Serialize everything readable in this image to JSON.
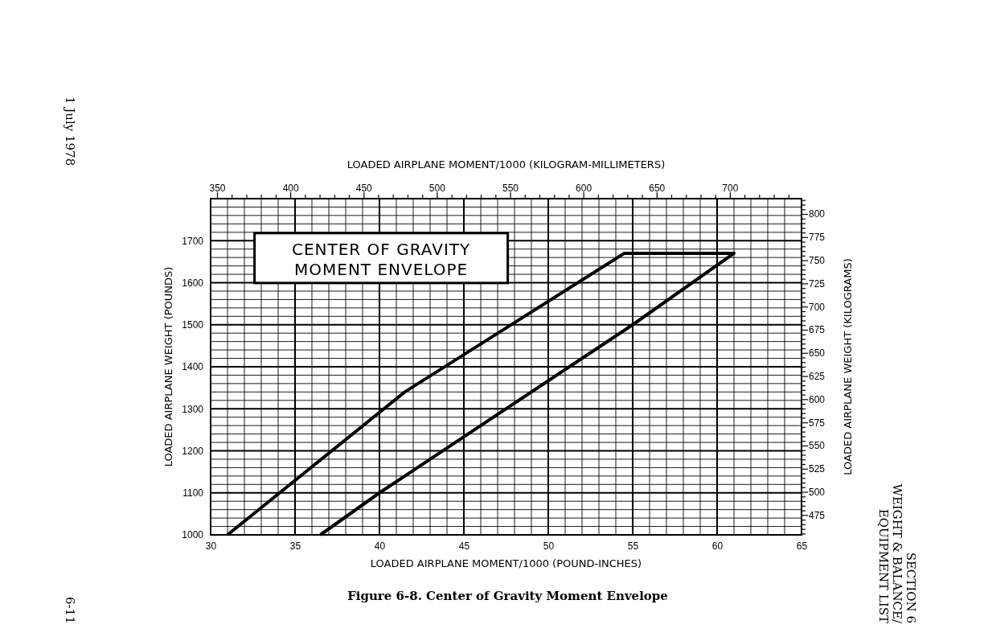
{
  "chart_data": {
    "type": "line",
    "title": "CENTER OF GRAVITY\nMOMENT ENVELOPE",
    "xlabel": "LOADED AIRPLANE MOMENT/1000 (POUND-INCHES)",
    "ylabel": "LOADED AIRPLANE WEIGHT (POUNDS)",
    "x2label": "LOADED AIRPLANE MOMENT/1000 (KILOGRAM-MILLIMETERS)",
    "y2label": "LOADED AIRPLANE WEIGHT (KILOGRAMS)",
    "xlim": [
      30,
      65
    ],
    "xticks": [
      30,
      {
        "value": 31,
        "label": null
      },
      {
        "value": 32,
        "label": null
      },
      {
        "value": 33,
        "label": null
      },
      {
        "value": 34,
        "label": null
      },
      35,
      {
        "value": 36,
        "label": null
      },
      {
        "value": 37,
        "label": null
      },
      {
        "value": 38,
        "label": null
      },
      {
        "value": 39,
        "label": null
      },
      40,
      {
        "value": 41,
        "label": null
      },
      {
        "value": 42,
        "label": null
      },
      {
        "value": 43,
        "label": null
      },
      {
        "value": 44,
        "label": null
      },
      45,
      {
        "value": 46,
        "label": null
      },
      {
        "value": 47,
        "label": null
      },
      {
        "value": 48,
        "label": null
      },
      {
        "value": 49,
        "label": null
      },
      50,
      {
        "value": 51,
        "label": null
      },
      {
        "value": 52,
        "label": null
      },
      {
        "value": 53,
        "label": null
      },
      {
        "value": 54,
        "label": null
      },
      55,
      {
        "value": 56,
        "label": null
      },
      {
        "value": 57,
        "label": null
      },
      {
        "value": 58,
        "label": null
      },
      {
        "value": 59,
        "label": null
      },
      60,
      {
        "value": 61,
        "label": null
      },
      {
        "value": 62,
        "label": null
      },
      {
        "value": 63,
        "label": null
      },
      {
        "value": 64,
        "label": null
      },
      65
    ],
    "ylim": [
      1000,
      1800
    ],
    "yticks": [
      1000,
      {
        "value": 1020,
        "label": null
      },
      {
        "value": 1040,
        "label": null
      },
      {
        "value": 1060,
        "label": null
      },
      {
        "value": 1080,
        "label": null
      },
      1100,
      {
        "value": 1120,
        "label": null
      },
      {
        "value": 1140,
        "label": null
      },
      {
        "value": 1160,
        "label": null
      },
      {
        "value": 1180,
        "label": null
      },
      1200,
      {
        "value": 1220,
        "label": null
      },
      {
        "value": 1240,
        "label": null
      },
      {
        "value": 1260,
        "label": null
      },
      {
        "value": 1280,
        "label": null
      },
      1300,
      {
        "value": 1320,
        "label": null
      },
      {
        "value": 1340,
        "label": null
      },
      {
        "value": 1360,
        "label": null
      },
      {
        "value": 1380,
        "label": null
      },
      1400,
      {
        "value": 1420,
        "label": null
      },
      {
        "value": 1440,
        "label": null
      },
      {
        "value": 1460,
        "label": null
      },
      {
        "value": 1480,
        "label": null
      },
      1500,
      {
        "value": 1520,
        "label": null
      },
      {
        "value": 1540,
        "label": null
      },
      {
        "value": 1560,
        "label": null
      },
      {
        "value": 1580,
        "label": null
      },
      1600,
      {
        "value": 1620,
        "label": null
      },
      {
        "value": 1640,
        "label": null
      },
      {
        "value": 1660,
        "label": null
      },
      {
        "value": 1680,
        "label": null
      },
      1700,
      {
        "value": 1720,
        "label": null
      },
      {
        "value": 1740,
        "label": null
      },
      {
        "value": 1760,
        "label": null
      },
      {
        "value": 1780,
        "label": null
      },
      {
        "value": 1800,
        "label": null
      }
    ],
    "x2lim": [
      345.6,
      748.9
    ],
    "x2ticks": [
      350,
      {
        "value": 360,
        "label": null
      },
      {
        "value": 370,
        "label": null
      },
      {
        "value": 380,
        "label": null
      },
      {
        "value": 390,
        "label": null
      },
      400,
      {
        "value": 410,
        "label": null
      },
      {
        "value": 420,
        "label": null
      },
      {
        "value": 430,
        "label": null
      },
      {
        "value": 440,
        "label": null
      },
      450,
      {
        "value": 460,
        "label": null
      },
      {
        "value": 470,
        "label": null
      },
      {
        "value": 480,
        "label": null
      },
      {
        "value": 490,
        "label": null
      },
      500,
      {
        "value": 510,
        "label": null
      },
      {
        "value": 520,
        "label": null
      },
      {
        "value": 530,
        "label": null
      },
      {
        "value": 540,
        "label": null
      },
      550,
      {
        "value": 560,
        "label": null
      },
      {
        "value": 570,
        "label": null
      },
      {
        "value": 580,
        "label": null
      },
      {
        "value": 590,
        "label": null
      },
      600,
      {
        "value": 610,
        "label": null
      },
      {
        "value": 620,
        "label": null
      },
      {
        "value": 630,
        "label": null
      },
      {
        "value": 640,
        "label": null
      },
      650,
      {
        "value": 660,
        "label": null
      },
      {
        "value": 670,
        "label": null
      },
      {
        "value": 680,
        "label": null
      },
      {
        "value": 690,
        "label": null
      },
      700,
      {
        "value": 710,
        "label": null
      },
      {
        "value": 720,
        "label": null
      },
      {
        "value": 730,
        "label": null
      },
      {
        "value": 740,
        "label": null
      }
    ],
    "y2lim": [
      453.6,
      816.5
    ],
    "y2ticks": [
      {
        "value": 455,
        "label": null
      },
      {
        "value": 460,
        "label": null
      },
      {
        "value": 465,
        "label": null
      },
      {
        "value": 470,
        "label": null
      },
      475,
      {
        "value": 480,
        "label": null
      },
      {
        "value": 485,
        "label": null
      },
      {
        "value": 490,
        "label": null
      },
      {
        "value": 495,
        "label": null
      },
      500,
      {
        "value": 505,
        "label": null
      },
      {
        "value": 510,
        "label": null
      },
      {
        "value": 515,
        "label": null
      },
      {
        "value": 520,
        "label": null
      },
      525,
      {
        "value": 530,
        "label": null
      },
      {
        "value": 535,
        "label": null
      },
      {
        "value": 540,
        "label": null
      },
      {
        "value": 545,
        "label": null
      },
      550,
      {
        "value": 555,
        "label": null
      },
      {
        "value": 560,
        "label": null
      },
      {
        "value": 565,
        "label": null
      },
      {
        "value": 570,
        "label": null
      },
      575,
      {
        "value": 580,
        "label": null
      },
      {
        "value": 585,
        "label": null
      },
      {
        "value": 590,
        "label": null
      },
      {
        "value": 595,
        "label": null
      },
      600,
      {
        "value": 605,
        "label": null
      },
      {
        "value": 610,
        "label": null
      },
      {
        "value": 615,
        "label": null
      },
      {
        "value": 620,
        "label": null
      },
      625,
      {
        "value": 630,
        "label": null
      },
      {
        "value": 635,
        "label": null
      },
      {
        "value": 640,
        "label": null
      },
      {
        "value": 645,
        "label": null
      },
      650,
      {
        "value": 655,
        "label": null
      },
      {
        "value": 660,
        "label": null
      },
      {
        "value": 665,
        "label": null
      },
      {
        "value": 670,
        "label": null
      },
      675,
      {
        "value": 680,
        "label": null
      },
      {
        "value": 685,
        "label": null
      },
      {
        "value": 690,
        "label": null
      },
      {
        "value": 695,
        "label": null
      },
      700,
      {
        "value": 705,
        "label": null
      },
      {
        "value": 710,
        "label": null
      },
      {
        "value": 715,
        "label": null
      },
      {
        "value": 720,
        "label": null
      },
      725,
      {
        "value": 730,
        "label": null
      },
      {
        "value": 735,
        "label": null
      },
      {
        "value": 740,
        "label": null
      },
      {
        "value": 745,
        "label": null
      },
      750,
      {
        "value": 755,
        "label": null
      },
      {
        "value": 760,
        "label": null
      },
      {
        "value": 765,
        "label": null
      },
      {
        "value": 770,
        "label": null
      },
      775,
      {
        "value": 780,
        "label": null
      },
      {
        "value": 785,
        "label": null
      },
      {
        "value": 790,
        "label": null
      },
      {
        "value": 795,
        "label": null
      },
      800,
      {
        "value": 805,
        "label": null
      },
      {
        "value": 810,
        "label": null
      },
      {
        "value": 815,
        "label": null
      }
    ],
    "grid": true,
    "marker": "none",
    "line_style": "solid",
    "series": [
      {
        "color": "#000000",
        "x": [
          31,
          41.5,
          54.5,
          61,
          55,
          40,
          36.5
        ],
        "values": [
          1000,
          1340,
          1670,
          1670,
          1500,
          1100,
          1000
        ]
      }
    ],
    "annotations": [
      "Figure 6-8.  Center of Gravity Moment Envelope",
      "1 July 1978",
      "6-11",
      "SECTION 6\nWEIGHT & BALANCE/\nEQUIPMENT LIST"
    ]
  }
}
